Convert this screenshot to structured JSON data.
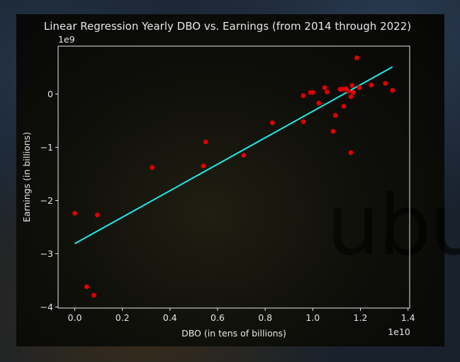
{
  "watermark": "ubur",
  "chart_data": {
    "type": "scatter",
    "title": "Linear Regression Yearly DBO vs. Earnings (from 2014 through 2022)",
    "xlabel": "DBO (in tens of billions)",
    "ylabel": "Earnings (in billions)",
    "x_offset_label": "1e10",
    "y_offset_label": "1e9",
    "xlim": [
      -0.07,
      1.407
    ],
    "ylim": [
      -4.02,
      0.9
    ],
    "x_ticks": [
      0.0,
      0.2,
      0.4,
      0.6,
      0.8,
      1.0,
      1.2,
      1.4
    ],
    "x_tick_labels": [
      "0.0",
      "0.2",
      "0.4",
      "0.6",
      "0.8",
      "1.0",
      "1.2",
      "1.4"
    ],
    "y_ticks": [
      0,
      -1,
      -2,
      -3,
      -4
    ],
    "y_tick_labels": [
      "0",
      "−1",
      "−2",
      "−3",
      "−4"
    ],
    "point_color": "#e00000",
    "line_color": "#1de9e9",
    "points": [
      {
        "x": 0.0,
        "y": -2.24
      },
      {
        "x": 0.05,
        "y": -3.62
      },
      {
        "x": 0.08,
        "y": -3.78
      },
      {
        "x": 0.095,
        "y": -2.27
      },
      {
        "x": 0.325,
        "y": -1.38
      },
      {
        "x": 0.54,
        "y": -1.35
      },
      {
        "x": 0.55,
        "y": -0.9
      },
      {
        "x": 0.71,
        "y": -1.15
      },
      {
        "x": 0.83,
        "y": -0.54
      },
      {
        "x": 0.96,
        "y": -0.52
      },
      {
        "x": 0.96,
        "y": -0.03
      },
      {
        "x": 0.99,
        "y": 0.03
      },
      {
        "x": 1.0,
        "y": 0.03
      },
      {
        "x": 1.025,
        "y": -0.17
      },
      {
        "x": 1.05,
        "y": 0.12
      },
      {
        "x": 1.06,
        "y": 0.04
      },
      {
        "x": 1.085,
        "y": -0.7
      },
      {
        "x": 1.095,
        "y": -0.4
      },
      {
        "x": 1.115,
        "y": 0.09
      },
      {
        "x": 1.125,
        "y": 0.09
      },
      {
        "x": 1.13,
        "y": -0.23
      },
      {
        "x": 1.14,
        "y": 0.1
      },
      {
        "x": 1.15,
        "y": 0.05
      },
      {
        "x": 1.16,
        "y": -0.05
      },
      {
        "x": 1.16,
        "y": -1.1
      },
      {
        "x": 1.165,
        "y": 0.16
      },
      {
        "x": 1.17,
        "y": 0.03
      },
      {
        "x": 1.185,
        "y": 0.68
      },
      {
        "x": 1.195,
        "y": 0.12
      },
      {
        "x": 1.245,
        "y": 0.17
      },
      {
        "x": 1.305,
        "y": 0.2
      },
      {
        "x": 1.335,
        "y": 0.07
      }
    ],
    "regression_line": {
      "x": [
        0.0,
        1.335
      ],
      "y": [
        -2.81,
        0.51
      ]
    },
    "grid": false,
    "legend": "none"
  }
}
